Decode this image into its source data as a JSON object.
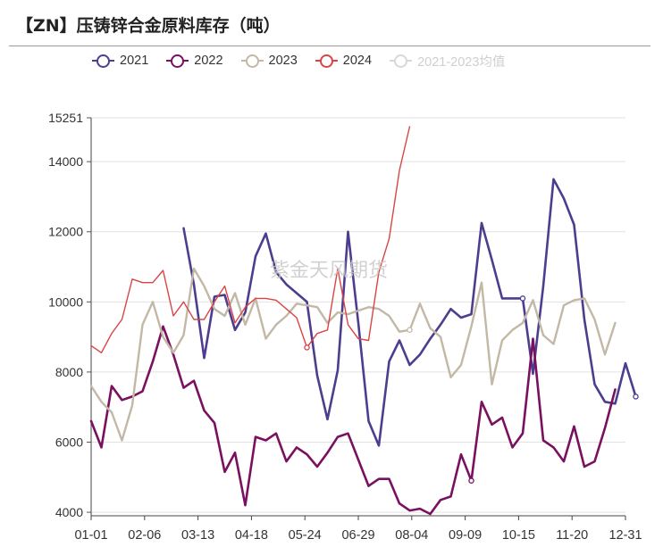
{
  "title": "【ZN】压铸锌合金原料库存（吨）",
  "watermark": "紫金天风期货",
  "legend": [
    {
      "label": "2021",
      "color": "#4e3d8f",
      "disabled": false
    },
    {
      "label": "2022",
      "color": "#7a1060",
      "disabled": false
    },
    {
      "label": "2023",
      "color": "#c2b8a5",
      "disabled": false
    },
    {
      "label": "2024",
      "color": "#d94545",
      "disabled": false
    },
    {
      "label": "2021-2023均值",
      "color": "#d8d8d8",
      "disabled": true
    }
  ],
  "chart_data": {
    "type": "line",
    "title": "【ZN】压铸锌合金原料库存（吨）",
    "xlabel": "",
    "ylabel": "",
    "x_ticks": [
      "01-01",
      "02-06",
      "03-13",
      "04-18",
      "05-24",
      "06-29",
      "08-04",
      "09-09",
      "10-15",
      "11-20",
      "12-31"
    ],
    "y_ticks": [
      4000,
      6000,
      8000,
      10000,
      12000,
      14000,
      15251
    ],
    "ylim": [
      3900,
      15251
    ],
    "points_per_year": 53,
    "grid": "horizontal",
    "legend_position": "top",
    "series": [
      {
        "name": "2021",
        "color": "#4e3d8f",
        "width": 2.6,
        "start": 9,
        "values": [
          12100,
          10500,
          8400,
          10150,
          10200,
          9200,
          9700,
          11300,
          11950,
          10850,
          10500,
          10250,
          10000,
          7900,
          6650,
          8050,
          12000,
          9400,
          6600,
          5900,
          8300,
          8900,
          8200,
          8500,
          8950,
          9350,
          9800,
          9550,
          9650,
          12250,
          11200,
          10100,
          10100,
          10100,
          7950,
          10450,
          13500,
          12950,
          12200,
          9500,
          7650,
          7150,
          7100,
          8250,
          7300
        ]
      },
      {
        "name": "2022",
        "color": "#7a1060",
        "width": 2.6,
        "start": 0,
        "values": [
          6600,
          5850,
          7600,
          7200,
          7300,
          7450,
          8300,
          9300,
          8500,
          7550,
          7750,
          6900,
          6550,
          5150,
          5700,
          4200,
          6150,
          6050,
          6250,
          5450,
          5850,
          5650,
          5300,
          5700,
          6150,
          6250,
          5500,
          4750,
          4950,
          4950,
          4250,
          4050,
          4100,
          3950,
          4350,
          4450,
          5650,
          4900,
          7150,
          6500,
          6700,
          5850,
          6250,
          8950,
          6050,
          5850,
          5450,
          6450,
          5300,
          5450,
          6400,
          7500
        ]
      },
      {
        "name": "2023",
        "color": "#c2b8a5",
        "width": 2.4,
        "start": 0,
        "values": [
          7600,
          7150,
          6850,
          6050,
          7050,
          9350,
          10000,
          9000,
          8550,
          9050,
          10950,
          10450,
          9800,
          9600,
          10250,
          9350,
          10100,
          8950,
          9350,
          9600,
          9950,
          9900,
          9850,
          9400,
          9700,
          9650,
          9750,
          9850,
          9800,
          9600,
          9150,
          9200,
          9950,
          9250,
          9000,
          7850,
          8200,
          9300,
          10550,
          7650,
          8900,
          9200,
          9400,
          10050,
          9050,
          8800,
          9900,
          10050,
          10100,
          9500,
          8500,
          9400
        ]
      },
      {
        "name": "2024",
        "color": "#d94545",
        "width": 1.4,
        "start": 0,
        "values": [
          8750,
          8550,
          9100,
          9500,
          10650,
          10550,
          10550,
          10900,
          9600,
          10000,
          9500,
          9500,
          10000,
          10450,
          9400,
          9850,
          10100,
          10100,
          10050,
          9800,
          9550,
          8700,
          9100,
          9200,
          10950,
          9350,
          8950,
          8900,
          10850,
          11800,
          13750,
          15000
        ]
      }
    ],
    "markers": [
      {
        "series": "2022",
        "index": 37
      },
      {
        "series": "2021",
        "index": 53
      },
      {
        "series": "2024",
        "index": 21
      },
      {
        "series": "2023",
        "index": 31
      },
      {
        "series": "2021",
        "index": 42
      }
    ]
  }
}
